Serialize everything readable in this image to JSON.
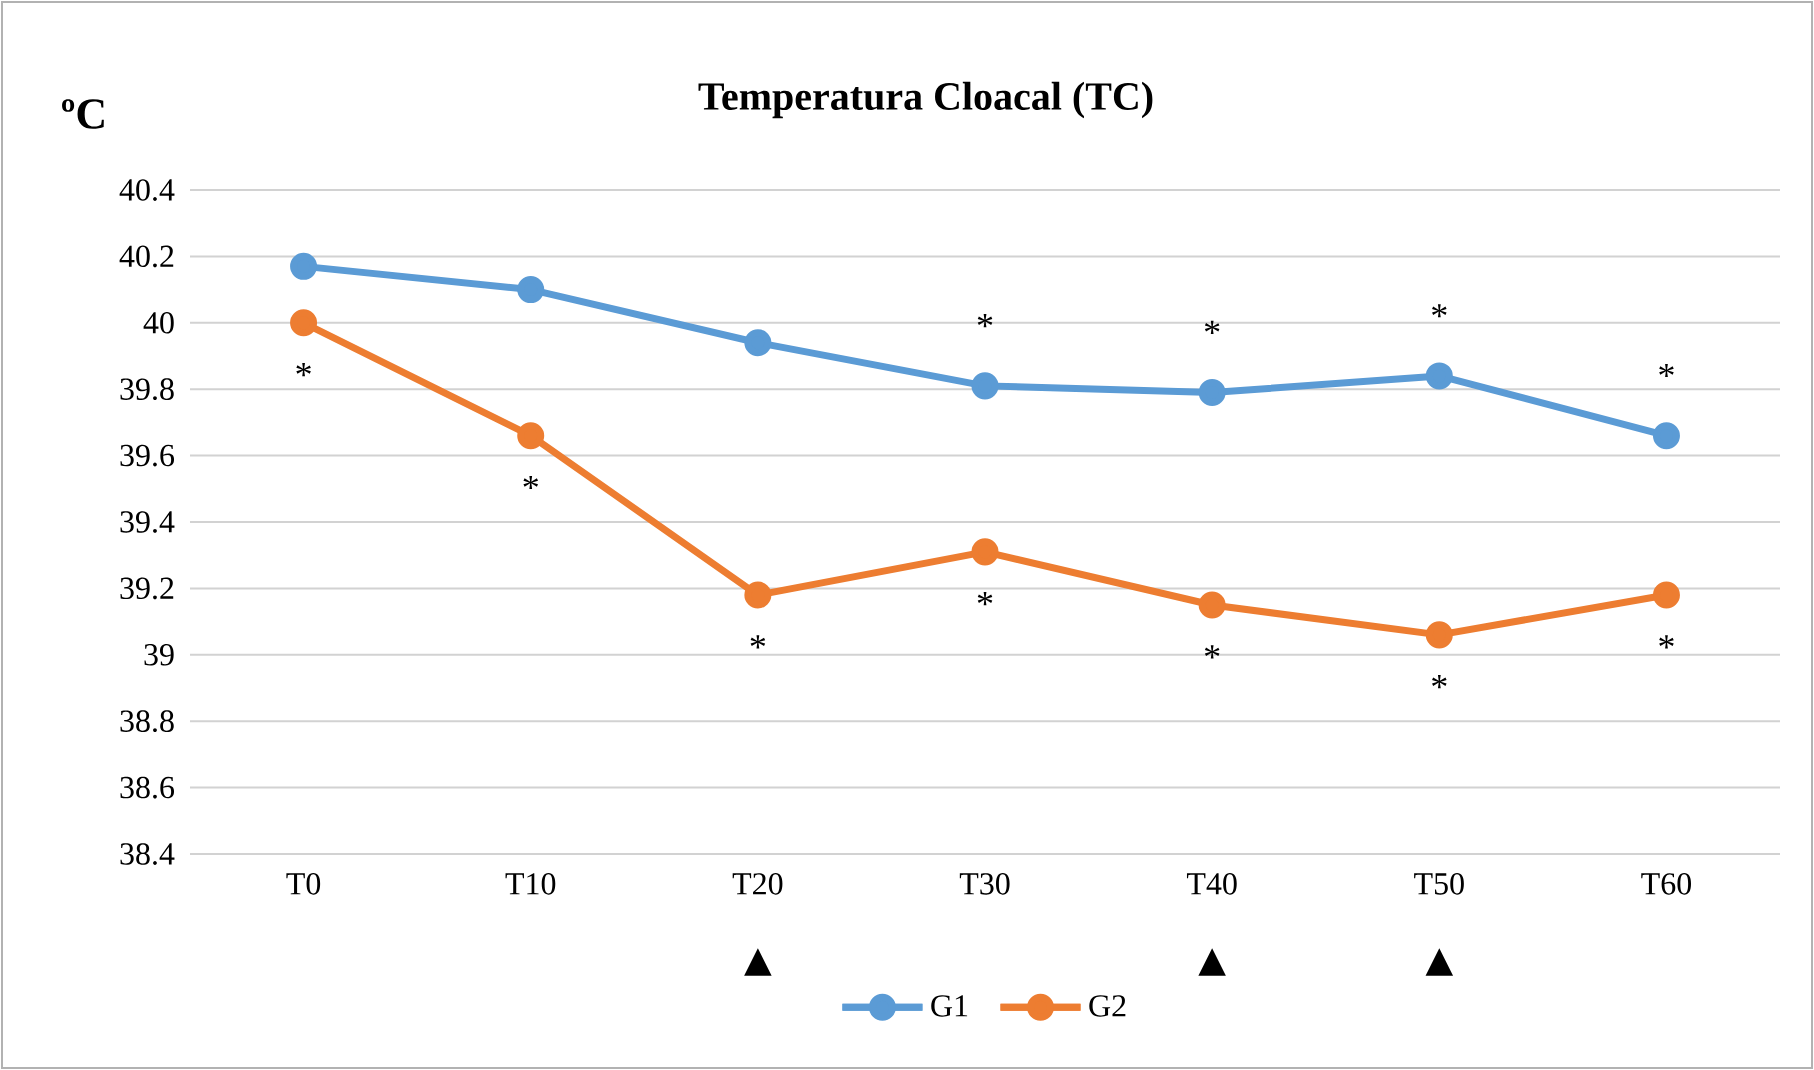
{
  "chart_data": {
    "type": "line",
    "title": "Temperatura Cloacal (TC)",
    "ylabel": "ºC",
    "categories": [
      "T0",
      "T10",
      "T20",
      "T30",
      "T40",
      "T50",
      "T60"
    ],
    "series": [
      {
        "name": "G1",
        "color": "#5b9bd5",
        "values": [
          40.17,
          40.1,
          39.94,
          39.81,
          39.79,
          39.84,
          39.66
        ]
      },
      {
        "name": "G2",
        "color": "#ed7d31",
        "values": [
          40.0,
          39.66,
          39.18,
          39.31,
          39.15,
          39.06,
          39.18
        ]
      }
    ],
    "ylim": [
      38.4,
      40.4
    ],
    "yticks": [
      38.4,
      38.6,
      38.8,
      39,
      39.2,
      39.4,
      39.6,
      39.8,
      40,
      40.2,
      40.4
    ],
    "grid": "y",
    "legend": "bottom",
    "marker": "circle",
    "line_style": "solid",
    "annotations": [
      {
        "text": "*",
        "x": "T0",
        "y": 40.0
      },
      {
        "text": "*",
        "x": "T10",
        "y": 39.66
      },
      {
        "text": "*",
        "x": "T20",
        "y": 39.18
      },
      {
        "text": "*",
        "x": "T30",
        "y": 39.31
      },
      {
        "text": "*",
        "x": "T40",
        "y": 39.15
      },
      {
        "text": "*",
        "x": "T50",
        "y": 39.06
      },
      {
        "text": "*",
        "x": "T60",
        "y": 39.18
      },
      {
        "text": "*",
        "x": "T30",
        "y": 39.81
      },
      {
        "text": "*",
        "x": "T40",
        "y": 39.79
      },
      {
        "text": "*",
        "x": "T50",
        "y": 39.84
      },
      {
        "text": "*",
        "x": "T60",
        "y": 39.66
      },
      "▲",
      "▲",
      "▲"
    ]
  }
}
